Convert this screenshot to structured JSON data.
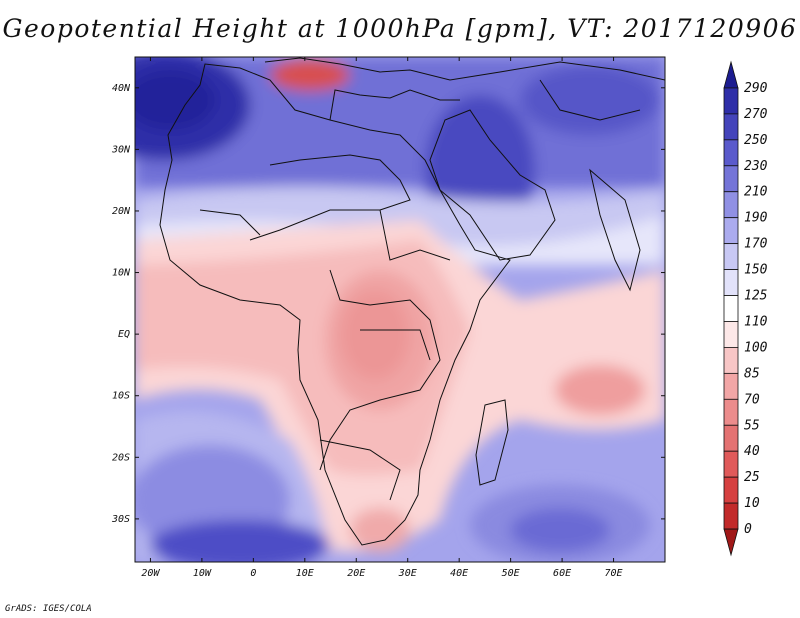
{
  "title": "Geopotential Height at 1000hPa [gpm], VT: 2017120906",
  "credit": "GrADS: IGES/COLA",
  "chart_data": {
    "type": "heatmap",
    "variable": "Geopotential Height at 1000hPa",
    "units": "gpm",
    "valid_time": "2017120906",
    "lon_range": [
      -23,
      80
    ],
    "lat_range": [
      -37,
      45
    ],
    "lon_ticks": [
      {
        "value": -20,
        "label": "20W"
      },
      {
        "value": -10,
        "label": "10W"
      },
      {
        "value": 0,
        "label": "0"
      },
      {
        "value": 10,
        "label": "10E"
      },
      {
        "value": 20,
        "label": "20E"
      },
      {
        "value": 30,
        "label": "30E"
      },
      {
        "value": 40,
        "label": "40E"
      },
      {
        "value": 50,
        "label": "50E"
      },
      {
        "value": 60,
        "label": "60E"
      },
      {
        "value": 70,
        "label": "70E"
      }
    ],
    "lat_ticks": [
      {
        "value": 40,
        "label": "40N"
      },
      {
        "value": 30,
        "label": "30N"
      },
      {
        "value": 20,
        "label": "20N"
      },
      {
        "value": 10,
        "label": "10N"
      },
      {
        "value": 0,
        "label": "EQ"
      },
      {
        "value": -10,
        "label": "10S"
      },
      {
        "value": -20,
        "label": "20S"
      },
      {
        "value": -30,
        "label": "30S"
      }
    ],
    "colorbar": {
      "levels": [
        0,
        10,
        25,
        40,
        55,
        70,
        85,
        100,
        110,
        125,
        150,
        170,
        190,
        210,
        230,
        250,
        270,
        290
      ],
      "colors": [
        "#a01818",
        "#c22a2a",
        "#d64040",
        "#e05a5a",
        "#e47272",
        "#ec8c8c",
        "#f2a6a6",
        "#f8c6c6",
        "#fde8e8",
        "#ffffff",
        "#e2e2fa",
        "#c8c8f4",
        "#ababee",
        "#9090e4",
        "#7474d8",
        "#5a5acc",
        "#4444bb",
        "#2e2ea8",
        "#1c1c90"
      ],
      "labels": [
        "0",
        "10",
        "25",
        "40",
        "55",
        "70",
        "85",
        "100",
        "110",
        "125",
        "150",
        "170",
        "190",
        "210",
        "230",
        "250",
        "270",
        "290"
      ]
    }
  }
}
